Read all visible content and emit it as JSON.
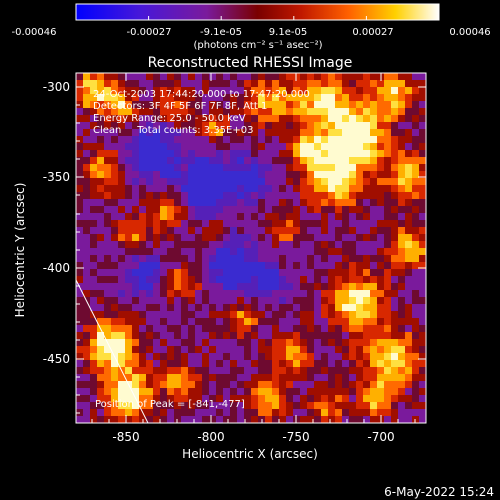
{
  "colorbar": {
    "ticks": [
      "-0.00046",
      "-0.00027",
      "-9.1e-05",
      "9.1e-05",
      "0.00027",
      "0.00046"
    ],
    "units": "(photons cm⁻² s⁻¹ asec⁻²)",
    "colors": [
      "#0000ff",
      "#5a10c8",
      "#7b1a9a",
      "#7a0000",
      "#d42000",
      "#ff7000",
      "#ffd800",
      "#ffffff"
    ]
  },
  "title": "Reconstructed RHESSI Image",
  "info": {
    "line1": "24-Oct-2003 17:44:20.000 to 17:47:20.000",
    "line2": "Detectors: 3F 4F 5F 6F 7F 8F, Att 1",
    "line3": "Energy Range: 25.0 - 50.0 keV",
    "line4": "Clean     Total counts: 3.35E+03",
    "peak": "Position of Peak = [-841,-477]"
  },
  "axes": {
    "xlabel": "Heliocentric X (arcsec)",
    "ylabel": "Heliocentric Y (arcsec)",
    "xticks": [
      "-850",
      "-800",
      "-750",
      "-700"
    ],
    "yticks": [
      "-300",
      "-350",
      "-400",
      "-450"
    ]
  },
  "footer": {
    "date": "6-May-2022 15:24"
  }
}
